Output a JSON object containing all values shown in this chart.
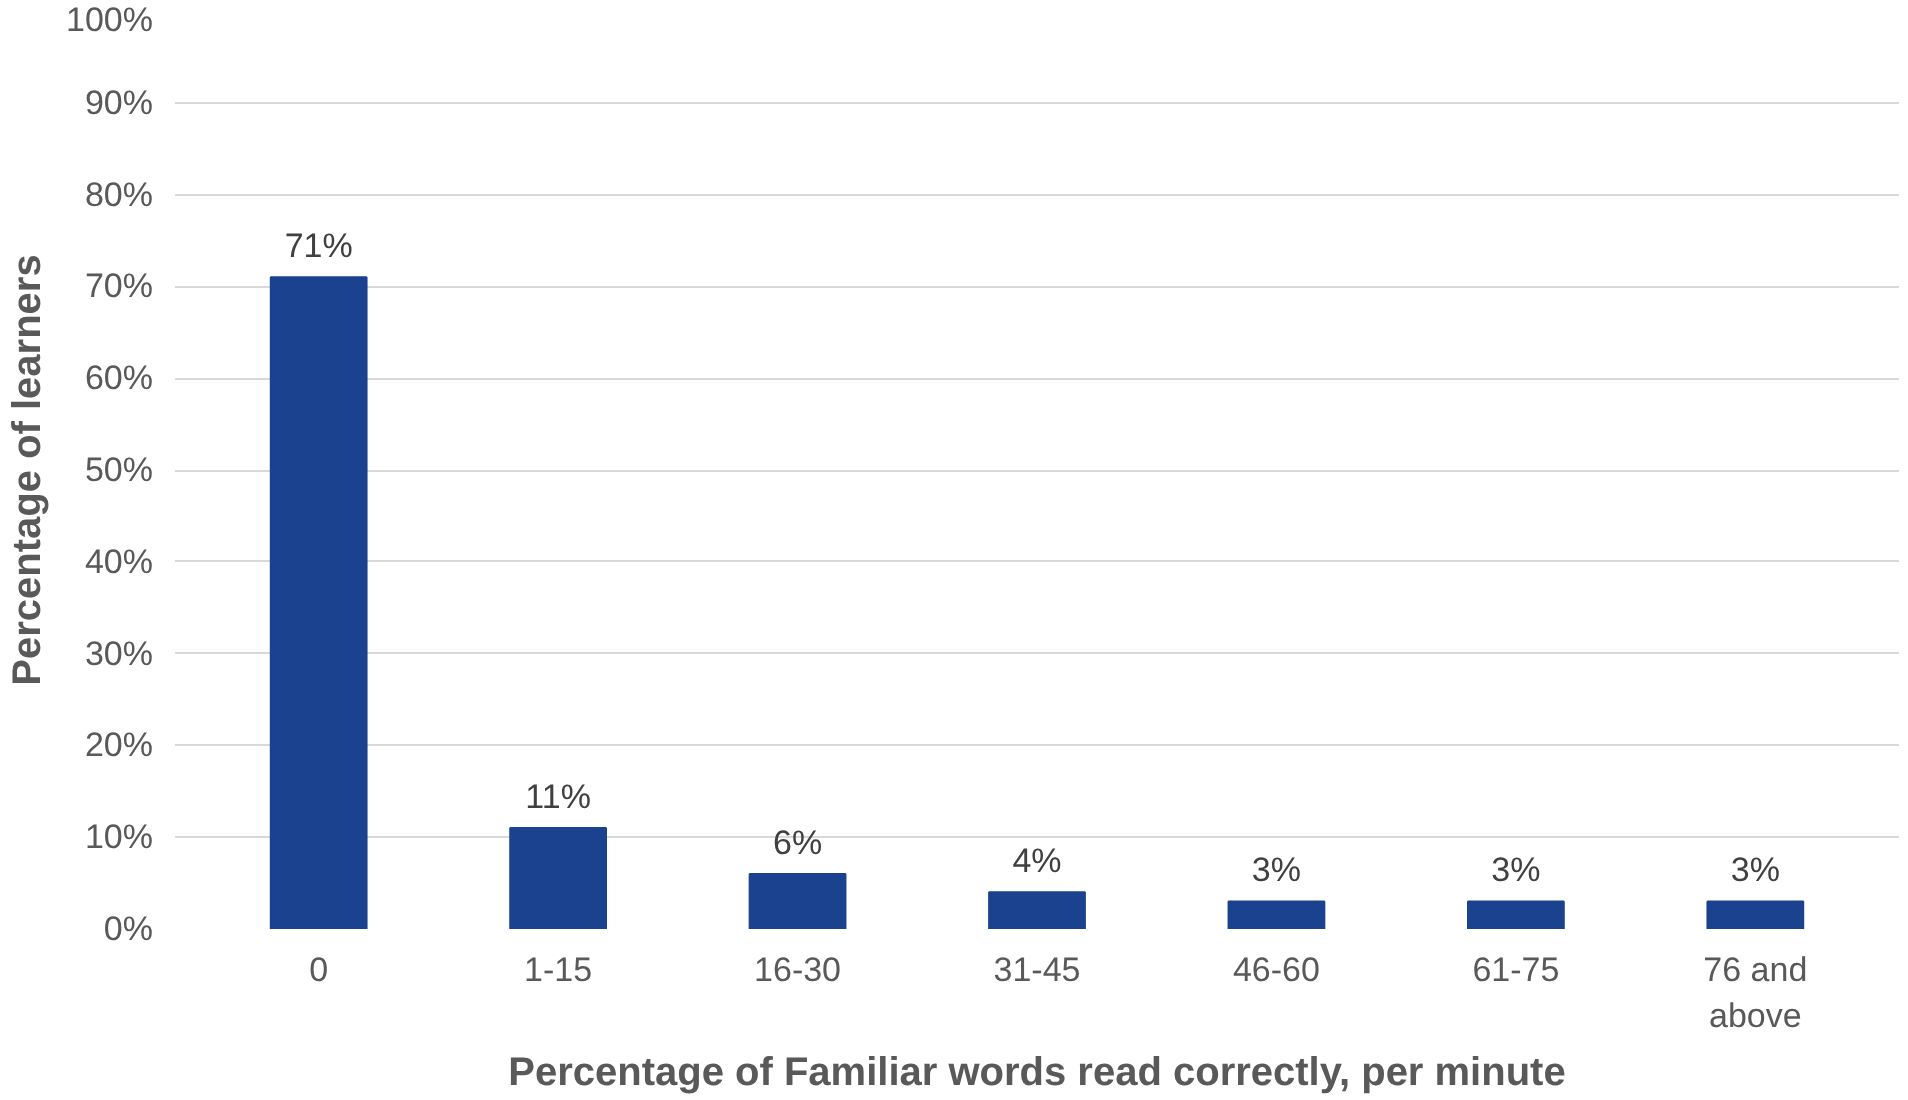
{
  "chart_data": {
    "type": "bar",
    "xlabel": "Percentage of Familiar words read correctly, per minute",
    "ylabel": "Percentage of learners",
    "categories": [
      "0",
      "1-15",
      "16-30",
      "31-45",
      "46-60",
      "61-75",
      "76 and above"
    ],
    "values": [
      71,
      11,
      6,
      4,
      3,
      3,
      3
    ],
    "value_labels": [
      "71%",
      "11%",
      "6%",
      "4%",
      "3%",
      "3%",
      "3%"
    ],
    "color": "#1a428f",
    "ylim": [
      0,
      100
    ],
    "yticks": [
      {
        "value": 0,
        "label": "0%"
      },
      {
        "value": 10,
        "label": "10%"
      },
      {
        "value": 20,
        "label": "20%"
      },
      {
        "value": 30,
        "label": "30%"
      },
      {
        "value": 40,
        "label": "40%"
      },
      {
        "value": 50,
        "label": "50%"
      },
      {
        "value": 60,
        "label": "60%"
      },
      {
        "value": 70,
        "label": "70%"
      },
      {
        "value": 80,
        "label": "80%"
      },
      {
        "value": 90,
        "label": "90%"
      },
      {
        "value": 100,
        "label": "100%"
      }
    ],
    "grid": "y"
  }
}
